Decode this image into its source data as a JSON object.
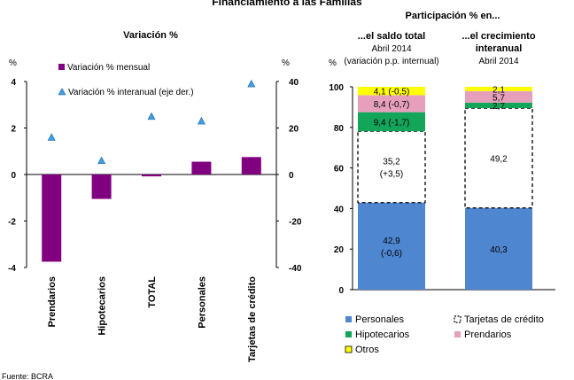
{
  "page": {
    "title": "Financiamiento a las Familias",
    "source": "Fuente: BCRA"
  },
  "colors": {
    "mensual": "#800080",
    "interanual": "#3f9fe0",
    "personales": "#4f86d0",
    "tarjetas": "#ffffff",
    "hipotecarios": "#13a55a",
    "prendarios": "#e6a0bc",
    "otros": "#ffff00"
  },
  "chart_data": [
    {
      "type": "bar",
      "title": "Variación %",
      "y_unit_left": "%",
      "y_unit_right": "%",
      "categories": [
        "Prendarios",
        "Hipotecarios",
        "TOTAL",
        "Personales",
        "Tarjetas de crédito"
      ],
      "ylim_left": [
        -4,
        4
      ],
      "yticks_left": [
        "4",
        "2",
        "0",
        "-2",
        "-4"
      ],
      "ylim_right": [
        -40,
        40
      ],
      "yticks_right": [
        "40",
        "20",
        "0",
        "-20",
        "-40"
      ],
      "series": [
        {
          "name": "Variación % mensual",
          "axis": "left",
          "kind": "bar",
          "values": [
            -3.75,
            -1.05,
            -0.08,
            0.55,
            0.75
          ]
        },
        {
          "name": "Variación % interanual (eje der.)",
          "axis": "right",
          "kind": "marker",
          "values": [
            16,
            6,
            25,
            23,
            39
          ]
        }
      ],
      "legend": "top-left"
    },
    {
      "type": "bar",
      "stacked": true,
      "title": "Participación % en...",
      "y_unit": "%",
      "ylim": [
        0,
        100
      ],
      "yticks": [
        "100",
        "80",
        "60",
        "40",
        "20",
        "0"
      ],
      "columns": [
        {
          "header": "...el saldo total",
          "sub1": "Abril 2014",
          "sub2": "(variación p.p. internual)"
        },
        {
          "header": "...el crecimiento interanual",
          "sub1": "Abril 2014",
          "sub2": ""
        }
      ],
      "series": [
        {
          "name": "Personales",
          "key": "personales",
          "values": [
            42.9,
            40.3
          ],
          "labels": [
            [
              "42,9",
              "(-0,6)"
            ],
            [
              "40,3"
            ]
          ]
        },
        {
          "name": "Tarjetas de crédito",
          "key": "tarjetas",
          "values": [
            35.2,
            49.2
          ],
          "labels": [
            [
              "35,2",
              "(+3,5)"
            ],
            [
              "49,2"
            ]
          ]
        },
        {
          "name": "Hipotecarios",
          "key": "hipotecarios",
          "values": [
            9.4,
            2.7
          ],
          "labels": [
            [
              "9,4 (-1,7)"
            ],
            [
              "2,7"
            ]
          ]
        },
        {
          "name": "Prendarios",
          "key": "prendarios",
          "values": [
            8.4,
            5.7
          ],
          "labels": [
            [
              "8,4 (-0,7)"
            ],
            [
              "5,7"
            ]
          ]
        },
        {
          "name": "Otros",
          "key": "otros",
          "values": [
            4.1,
            2.1
          ],
          "labels": [
            [
              "4,1 (-0,5)"
            ],
            [
              "2,1"
            ]
          ]
        }
      ],
      "legend": "bottom"
    }
  ]
}
